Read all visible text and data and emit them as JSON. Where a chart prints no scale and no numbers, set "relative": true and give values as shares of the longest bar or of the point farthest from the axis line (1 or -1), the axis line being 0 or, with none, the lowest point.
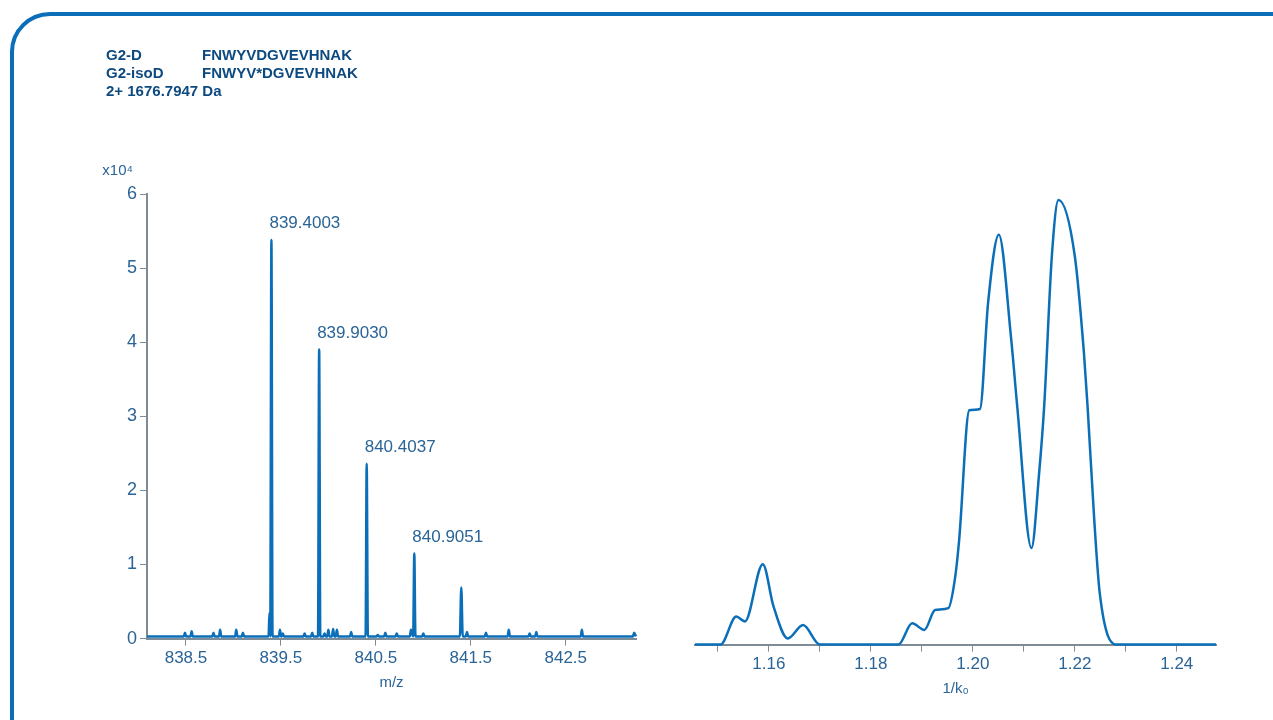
{
  "chart_data": [
    {
      "type": "line",
      "title": "G2-D FNWYVDGVEVHNAK",
      "subtitle": "G2-isoD FNWYV*DGVEVHNAK",
      "xlabel": "m/z",
      "ylabel": "x10⁴",
      "xlim": [
        838.09,
        843.24
      ],
      "xticks": [
        838.5,
        839.5,
        840.5,
        841.5,
        842.5
      ],
      "ylim": [
        0,
        6
      ],
      "yticks": [
        0,
        1,
        2,
        3,
        4,
        5,
        6
      ],
      "annotations": [
        "2+ 1676.7947 Da",
        {
          "text": "839.4003",
          "x": 839.4003,
          "y": 5.38
        },
        {
          "text": "839.9030",
          "x": 839.903,
          "y": 3.9
        },
        {
          "text": "840.4037",
          "x": 840.4037,
          "y": 2.36
        },
        {
          "text": "840.9051",
          "x": 840.9051,
          "y": 1.15
        }
      ],
      "series": [
        {
          "color": "#0a6fb8",
          "x": [
            838.09,
            838.478,
            838.49,
            838.502,
            838.548,
            838.56,
            838.572,
            838.778,
            838.79,
            838.802,
            838.848,
            838.86,
            838.872,
            839.018,
            839.03,
            839.042,
            839.088,
            839.1,
            839.112,
            839.37,
            839.38,
            839.388,
            839.4003,
            839.412,
            839.478,
            839.49,
            839.502,
            839.508,
            839.52,
            839.532,
            839.738,
            839.75,
            839.762,
            839.818,
            839.83,
            839.842,
            839.891,
            839.903,
            839.915,
            839.948,
            839.96,
            839.972,
            839.988,
            840.0,
            840.012,
            840.038,
            840.05,
            840.062,
            840.078,
            840.09,
            840.102,
            840.228,
            840.24,
            840.252,
            840.392,
            840.4037,
            840.416,
            840.508,
            840.52,
            840.532,
            840.588,
            840.6,
            840.612,
            840.708,
            840.72,
            840.732,
            840.858,
            840.87,
            840.893,
            840.9051,
            840.917,
            840.988,
            841.0,
            841.012,
            841.385,
            841.4,
            841.415,
            841.448,
            841.46,
            841.472,
            841.648,
            841.66,
            841.672,
            841.888,
            841.9,
            841.912,
            842.108,
            842.12,
            842.132,
            842.178,
            842.19,
            842.202,
            842.658,
            842.67,
            842.682,
            843.208,
            843.22,
            843.24
          ],
          "values": [
            0.03,
            0.03,
            0.08,
            0.03,
            0.03,
            0.1,
            0.03,
            0.03,
            0.08,
            0.03,
            0.03,
            0.12,
            0.03,
            0.03,
            0.12,
            0.03,
            0.03,
            0.08,
            0.03,
            0.03,
            0.35,
            0.03,
            5.38,
            0.03,
            0.03,
            0.12,
            0.03,
            0.03,
            0.07,
            0.03,
            0.03,
            0.07,
            0.03,
            0.03,
            0.08,
            0.03,
            0.03,
            3.9,
            0.03,
            0.03,
            0.07,
            0.03,
            0.03,
            0.12,
            0.03,
            0.03,
            0.13,
            0.03,
            0.03,
            0.12,
            0.03,
            0.03,
            0.09,
            0.03,
            0.03,
            2.36,
            0.03,
            0.03,
            0.05,
            0.03,
            0.03,
            0.08,
            0.03,
            0.03,
            0.07,
            0.03,
            0.03,
            0.12,
            0.03,
            1.15,
            0.03,
            0.03,
            0.07,
            0.03,
            0.03,
            0.69,
            0.03,
            0.03,
            0.09,
            0.03,
            0.03,
            0.08,
            0.03,
            0.03,
            0.12,
            0.03,
            0.03,
            0.07,
            0.03,
            0.03,
            0.09,
            0.03,
            0.03,
            0.12,
            0.03,
            0.03,
            0.08,
            0.03
          ]
        }
      ]
    },
    {
      "type": "line",
      "relative": true,
      "xlabel": "1/k₀",
      "tick_labels": "x",
      "xlim": [
        1.1455,
        1.2477
      ],
      "xticks": [
        {
          "value": 1.15,
          "label": null
        },
        {
          "value": 1.16,
          "label": "1.16"
        },
        {
          "value": 1.17,
          "label": null
        },
        {
          "value": 1.18,
          "label": "1.18"
        },
        {
          "value": 1.19,
          "label": null
        },
        {
          "value": 1.2,
          "label": "1.20"
        },
        {
          "value": 1.21,
          "label": null
        },
        {
          "value": 1.22,
          "label": "1.22"
        },
        {
          "value": 1.23,
          "label": null
        },
        {
          "value": 1.24,
          "label": "1.24"
        }
      ],
      "series": [
        {
          "color": "#0a6fb8",
          "x": [
            1.1455,
            1.1505,
            1.1536,
            1.1553,
            1.1588,
            1.1609,
            1.1637,
            1.1667,
            1.17,
            1.1854,
            1.1881,
            1.1905,
            1.1926,
            1.1952,
            1.1965,
            1.1973,
            1.1993,
            1.2014,
            1.203,
            1.2051,
            1.2075,
            1.2087,
            1.2115,
            1.213,
            1.214,
            1.2155,
            1.2168,
            1.22,
            1.2218,
            1.2225,
            1.2238,
            1.2249,
            1.2281,
            1.2477
          ],
          "values": [
            0,
            0,
            0.063,
            0.052,
            0.181,
            0.086,
            0.014,
            0.044,
            0,
            0,
            0.048,
            0.033,
            0.078,
            0.082,
            0.149,
            0.233,
            0.527,
            0.53,
            0.77,
            0.922,
            0.69,
            0.537,
            0.217,
            0.385,
            0.537,
            0.874,
            1,
            0.874,
            0.655,
            0.537,
            0.284,
            0.115,
            0,
            0
          ]
        }
      ]
    }
  ]
}
